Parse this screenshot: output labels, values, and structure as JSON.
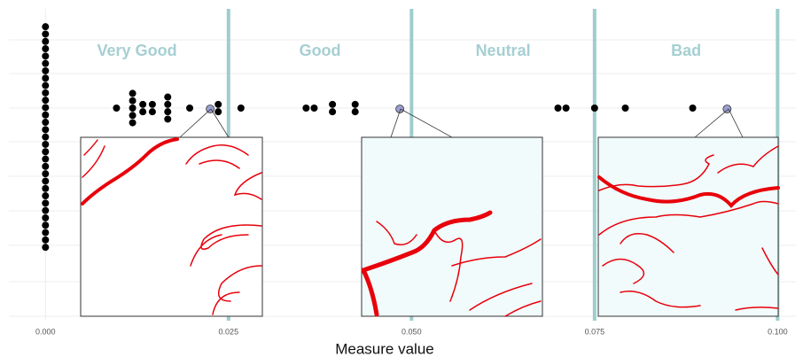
{
  "chart_data": {
    "type": "dotplot",
    "x_label": "Measure value",
    "xlim": [
      -0.005,
      0.1025
    ],
    "xticks": [
      {
        "value": 0,
        "label": "0.000"
      },
      {
        "value": 0.025,
        "label": "0.025"
      },
      {
        "value": 0.05,
        "label": "0.050"
      },
      {
        "value": 0.075,
        "label": "0.075"
      },
      {
        "value": 0.1,
        "label": "0.100"
      }
    ],
    "grid": true,
    "thresholds": [
      0.025,
      0.05,
      0.075,
      0.1
    ],
    "threshold_color": "#9fcdcd",
    "classes": [
      "Very Good",
      "Good",
      "Neutral",
      "Bad"
    ],
    "points": {
      "color": "#000000",
      "x": [
        0,
        0,
        0,
        0,
        0,
        0,
        0,
        0,
        0,
        0,
        0,
        0,
        0,
        0,
        0,
        0,
        0,
        0,
        0,
        0,
        0,
        0,
        0,
        0,
        0,
        0,
        0,
        0,
        0,
        0,
        0,
        0.0097,
        0.0119,
        0.0119,
        0.0119,
        0.0119,
        0.0119,
        0.0133,
        0.0133,
        0.0146,
        0.0146,
        0.0167,
        0.0167,
        0.0167,
        0.0167,
        0.0197,
        0.0236,
        0.0236,
        0.0267,
        0.0356,
        0.0367,
        0.0392,
        0.0392,
        0.0423,
        0.0423,
        0.07,
        0.0711,
        0.075,
        0.0792,
        0.0884
      ]
    },
    "highlighted": {
      "color": "#9a9ed0",
      "x": [
        0.0225,
        0.0484,
        0.0931
      ]
    }
  }
}
